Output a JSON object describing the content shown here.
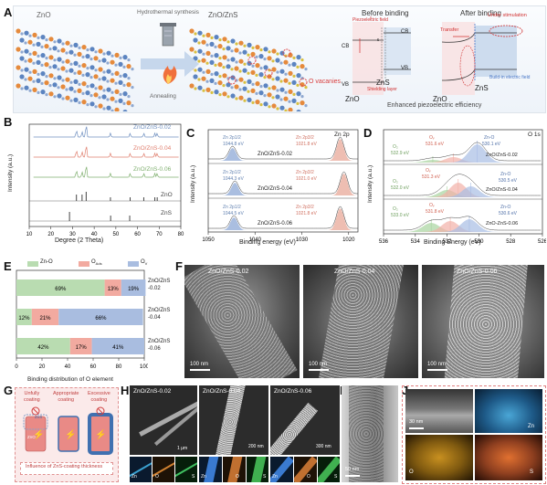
{
  "panels": {
    "A": "A",
    "B": "B",
    "C": "C",
    "D": "D",
    "E": "E",
    "F": "F",
    "G": "G",
    "H": "H",
    "I": "I",
    "J": "J"
  },
  "A": {
    "zno": "ZnO",
    "hydro": "Hydrothermal synthesis",
    "znozns": "ZnO/ZnS",
    "annealing": "Annealing",
    "vacancies": "O vacanies",
    "before": "Before binding",
    "after": "After binding",
    "piezo_field": "Piezoelectric field",
    "cb_left": "CB",
    "vb_left": "VB",
    "cb_right": "CB",
    "vb_right": "VB",
    "ec": "ε",
    "ev": "ε",
    "shielding": "Shielding layer",
    "zno_b": "ZnO",
    "zns_b": "ZnS",
    "transfer": "Transfer",
    "under_stim": "Under stimulation",
    "built_in": "Build-in electric field",
    "zno_a": "ZnO",
    "zns_a": "ZnS",
    "enhanced": "Enhanced piezoelectric efficiency"
  },
  "B": {
    "xlabel": "Degree (2 Theta)",
    "ylabel": "Intensity (a.u.)",
    "curves": [
      "ZnO/ZnS-0.02",
      "ZnO/ZnS-0.04",
      "ZnO/ZnS-0.06",
      "ZnO",
      "ZnS"
    ],
    "xticks": [
      "10",
      "20",
      "30",
      "40",
      "50",
      "60",
      "70",
      "80"
    ]
  },
  "C": {
    "corner": "Zn 2p",
    "xlabel": "Binding energy (eV)",
    "ylabel": "Intensity (a.u.)",
    "xticks": [
      "1050",
      "1040",
      "1030",
      "1020"
    ],
    "rows": [
      {
        "name": "ZnO/ZnS-0.02",
        "p12": "Zn 2p1/2",
        "e12": "1044.8 eV",
        "p32": "Zn 2p3/2",
        "e32": "1021.8 eV"
      },
      {
        "name": "ZnO/ZnS-0.04",
        "p12": "Zn 2p1/2",
        "e12": "1044.3 eV",
        "p32": "Zn 2p3/2",
        "e32": "1021.0 eV"
      },
      {
        "name": "ZnO/ZnS-0.06",
        "p12": "Zn 2p1/2",
        "e12": "1044.5 eV",
        "p32": "Zn 2p3/2",
        "e32": "1021.8 eV"
      }
    ]
  },
  "D": {
    "corner": "O 1s",
    "xlabel": "Binding Energy (eV)",
    "ylabel": "Intensity (a.u.)",
    "xticks": [
      "536",
      "534",
      "532",
      "530",
      "528",
      "526"
    ],
    "rows": [
      {
        "name": "ZnO/ZnS-0.02",
        "oa": "O₂",
        "oae": "532.9 eV",
        "ov": "Oᵥ",
        "ove": "531.6 eV",
        "zo": "Zn-O",
        "zoe": "530.1 eV"
      },
      {
        "name": "ZnO/ZnS-0.04",
        "oa": "O₂",
        "oae": "532.0 eV",
        "ov": "Oᵥ",
        "ove": "531.3 eV",
        "zo": "Zn-O",
        "zoe": "530.5 eV"
      },
      {
        "name": "ZnO-ZnS-0.06",
        "oa": "O₂",
        "oae": "533.0 eV",
        "ov": "Oᵥ",
        "ove": "531.8 eV",
        "zo": "Zn-O",
        "zoe": "530.6 eV"
      }
    ]
  },
  "chart_data": [
    {
      "type": "bar",
      "title": "",
      "xlabel": "Binding distribution of O element",
      "legend": [
        "Zn-O",
        "O_Ads",
        "O_V"
      ],
      "legend_placement": "top",
      "categories": [
        "ZnO/ZnS -0.02",
        "ZnO/ZnS -0.04",
        "ZnO/ZnS -0.06"
      ],
      "series": [
        {
          "name": "Zn-O",
          "values": [
            69,
            12,
            42
          ]
        },
        {
          "name": "O_Ads",
          "values": [
            13,
            21,
            17
          ]
        },
        {
          "name": "O_V",
          "values": [
            19,
            66,
            41
          ]
        }
      ],
      "xlim": [
        0,
        100
      ],
      "xticks": [
        "0",
        "20",
        "40",
        "60",
        "80",
        "100"
      ],
      "orientation": "horizontal-stacked"
    }
  ],
  "E": {
    "xlabel": "Binding distribution of O element",
    "leg1": "Zn-O",
    "leg2": "O",
    "leg2sub": "Ads",
    "leg3": "O",
    "leg3sub": "V",
    "cat1a": "ZnO/ZnS",
    "cat1b": "-0.02",
    "cat2a": "ZnO/ZnS",
    "cat2b": "-0.04",
    "cat3a": "ZnO/ZnS",
    "cat3b": "-0.06",
    "pct": [
      [
        "69%",
        "13%",
        "19%"
      ],
      [
        "12%",
        "21%",
        "66%"
      ],
      [
        "42%",
        "17%",
        "41%"
      ]
    ],
    "xticks": [
      "0",
      "20",
      "40",
      "60",
      "80",
      "100"
    ],
    "colors": {
      "zno": "#b9dcb1",
      "oads": "#f2aaa0",
      "ov": "#a9bde0"
    }
  },
  "F": {
    "labels": [
      "ZnO/ZnS-0.02",
      "ZnO/ZnS-0.04",
      "ZnO/ZnS-0.06"
    ],
    "scale": [
      "100 nm",
      "100 nm",
      "100 nm"
    ]
  },
  "G": {
    "l1a": "Unfully",
    "l1b": "coating",
    "l2a": "Appropriate",
    "l2b": "coating",
    "l3a": "Excessive",
    "l3b": "coating",
    "zns": "ZnS",
    "zno": "ZnO",
    "footer": "Influence of ZnS-coating thickness"
  },
  "H": {
    "labels": [
      "ZnO/ZnS-0.02",
      "ZnO/ZnS-0.04",
      "ZnO/ZnS-0.06"
    ],
    "scale": [
      "1 μm",
      "200 nm",
      "300 nm"
    ],
    "maps": [
      "Zn",
      "O",
      "S"
    ]
  },
  "I": {
    "scale": "50 nm"
  },
  "J": {
    "scale": "30 nm",
    "maps": [
      "Zn",
      "O",
      "S"
    ]
  }
}
